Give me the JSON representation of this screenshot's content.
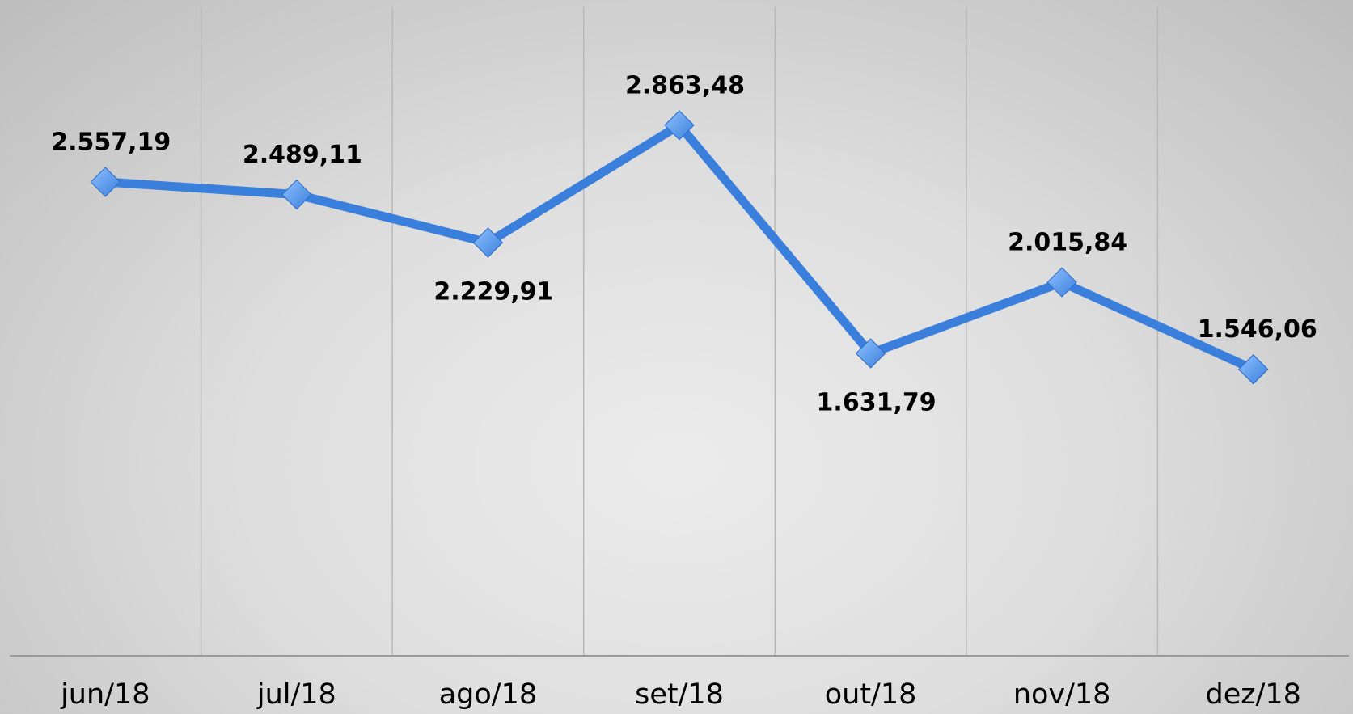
{
  "chart_data": {
    "type": "line",
    "categories": [
      "jun/18",
      "jul/18",
      "ago/18",
      "set/18",
      "out/18",
      "nov/18",
      "dez/18"
    ],
    "values": [
      2557.19,
      2489.11,
      2229.91,
      2863.48,
      1631.79,
      2015.84,
      1546.06
    ],
    "value_labels": [
      "2.557,19",
      "2.489,11",
      "2.229,91",
      "2.863,48",
      "1.631,79",
      "2.015,84",
      "1.546,06"
    ],
    "color": "#3a7fdc",
    "ylim": [
      0,
      3500
    ]
  }
}
